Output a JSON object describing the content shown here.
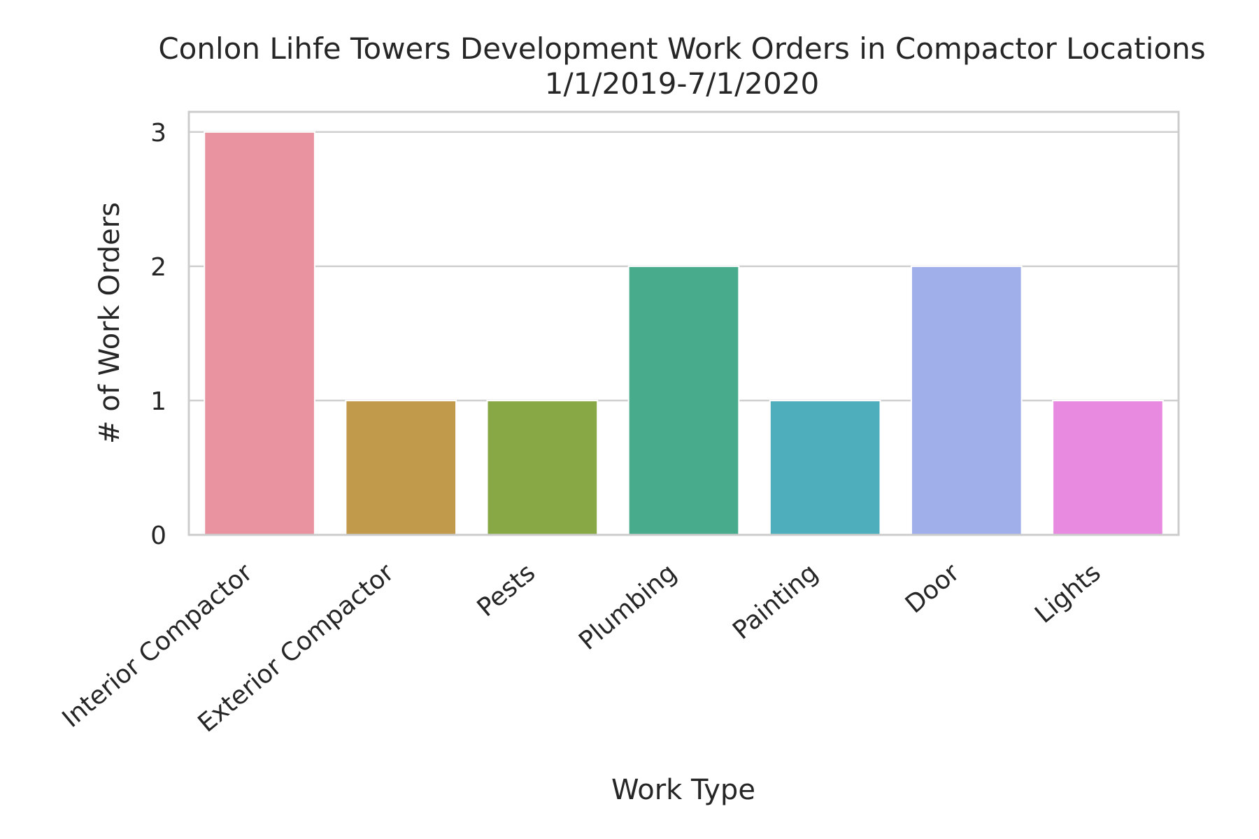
{
  "chart_data": {
    "type": "bar",
    "title": "Conlon Lihfe Towers Development Work Orders in Compactor Locations",
    "subtitle": "1/1/2019-7/1/2020",
    "xlabel": "Work Type",
    "ylabel": "# of Work Orders",
    "categories": [
      "Interior Compactor",
      "Exterior Compactor",
      "Pests",
      "Plumbing",
      "Painting",
      "Door",
      "Lights"
    ],
    "values": [
      3,
      1,
      1,
      2,
      1,
      2,
      1
    ],
    "colors": [
      "#e8939f",
      "#c19a4b",
      "#88a845",
      "#48ab8b",
      "#4faebb",
      "#a0aee9",
      "#e88ae0"
    ],
    "ylim": [
      0,
      3.15
    ],
    "yticks": [
      "0",
      "1",
      "2",
      "3"
    ],
    "grid": true,
    "legend": "none"
  }
}
